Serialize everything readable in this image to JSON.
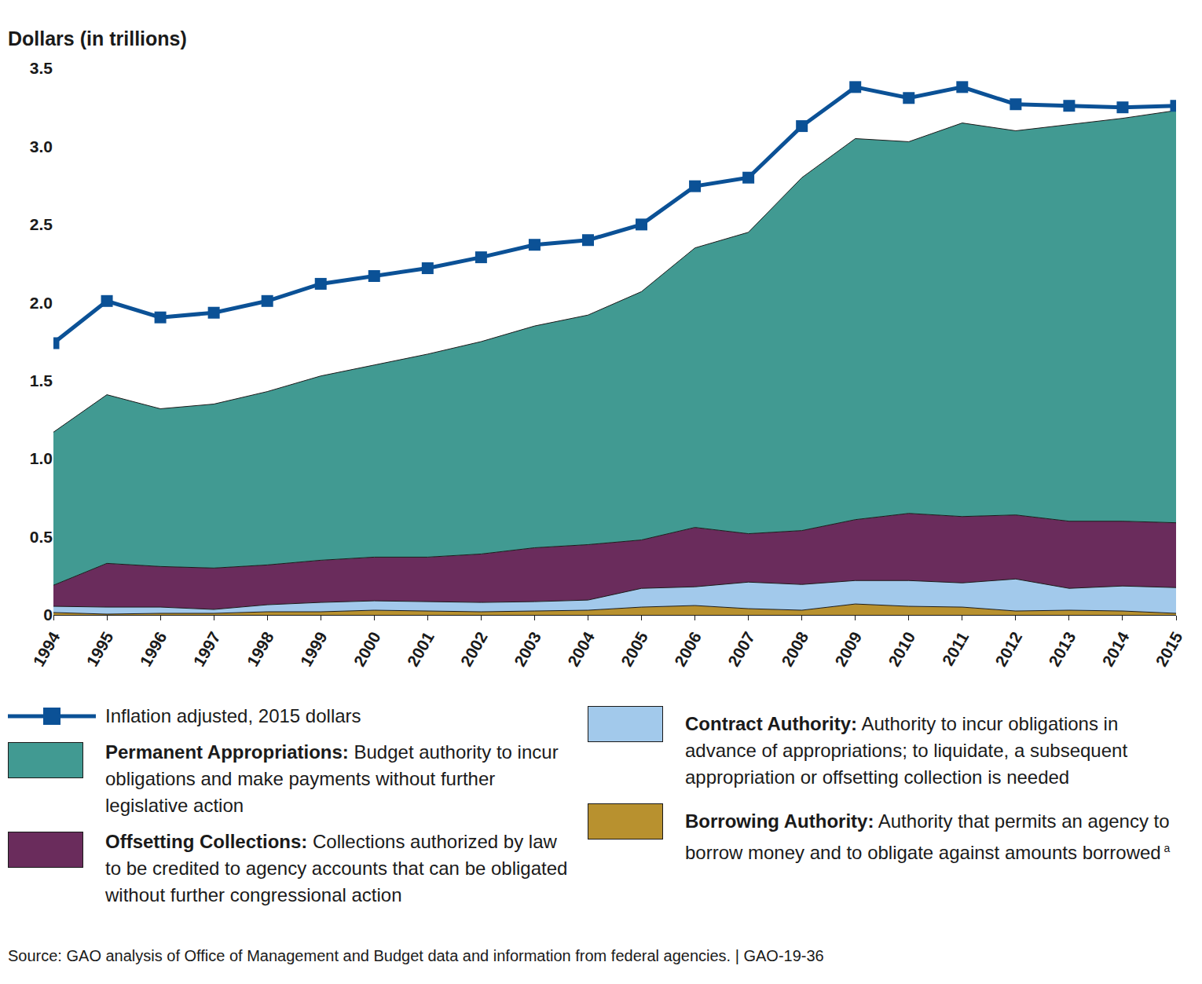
{
  "chart_data": {
    "type": "area",
    "stacked": true,
    "grid": false,
    "ylabel": "Dollars (in trillions)",
    "x": [
      1994,
      1995,
      1996,
      1997,
      1998,
      1999,
      2000,
      2001,
      2002,
      2003,
      2004,
      2005,
      2006,
      2007,
      2008,
      2009,
      2010,
      2011,
      2012,
      2013,
      2014,
      2015
    ],
    "xlim": [
      1994,
      2015
    ],
    "xticks": [
      1994,
      1995,
      1996,
      1997,
      1998,
      1999,
      2000,
      2001,
      2002,
      2003,
      2004,
      2005,
      2006,
      2007,
      2008,
      2009,
      2010,
      2011,
      2012,
      2013,
      2014,
      2015
    ],
    "ylim": [
      0,
      3.5
    ],
    "yticks": [
      0,
      0.5,
      {
        "value": 1,
        "label": "1.0"
      },
      1.5,
      {
        "value": 2,
        "label": "2.0"
      },
      2.5,
      {
        "value": 3,
        "label": "3.0"
      },
      3.5
    ],
    "series": [
      {
        "name": "Borrowing Authority:",
        "type": "area",
        "color": "#b8912f",
        "description": "Authority that permits an agency to borrow money and to obligate against amounts borrowed",
        "footnote": "a",
        "values": [
          0.015,
          0.005,
          0.01,
          0.01,
          0.02,
          0.02,
          0.03,
          0.025,
          0.02,
          0.025,
          0.03,
          0.05,
          0.06,
          0.04,
          0.03,
          0.07,
          0.055,
          0.05,
          0.025,
          0.03,
          0.025,
          0.01
        ]
      },
      {
        "name": "Contract Authority:",
        "type": "area",
        "color": "#a2c9eb",
        "description": "Authority to incur obligations in advance of appropriations; to liquidate, a subsequent appropriation or offsetting collection is needed",
        "values": [
          0.04,
          0.045,
          0.04,
          0.025,
          0.045,
          0.06,
          0.06,
          0.06,
          0.06,
          0.06,
          0.065,
          0.12,
          0.12,
          0.17,
          0.165,
          0.15,
          0.165,
          0.155,
          0.205,
          0.14,
          0.16,
          0.165
        ]
      },
      {
        "name": "Offsetting Collections:",
        "type": "area",
        "color": "#6a2c5c",
        "description": "Collections authorized by law to be credited to agency accounts that can be obligated without further congressional action",
        "values": [
          0.135,
          0.28,
          0.26,
          0.265,
          0.255,
          0.27,
          0.28,
          0.285,
          0.31,
          0.345,
          0.355,
          0.31,
          0.38,
          0.31,
          0.345,
          0.39,
          0.43,
          0.425,
          0.41,
          0.43,
          0.415,
          0.415
        ]
      },
      {
        "name": "Permanent Appropriations:",
        "type": "area",
        "color": "#419a92",
        "description": "Budget authority to incur obligations and make payments without further legislative action",
        "values": [
          0.98,
          1.08,
          1.01,
          1.05,
          1.11,
          1.18,
          1.23,
          1.3,
          1.36,
          1.42,
          1.47,
          1.59,
          1.79,
          1.93,
          2.26,
          2.44,
          2.38,
          2.52,
          2.46,
          2.54,
          2.58,
          2.64
        ]
      },
      {
        "name": "Inflation adjusted, 2015 dollars",
        "type": "line",
        "color": "#0b5196",
        "marker": "square",
        "line_style": "solid",
        "values": [
          1.74,
          2.01,
          1.905,
          1.935,
          2.01,
          2.12,
          2.17,
          2.22,
          2.29,
          2.37,
          2.4,
          2.5,
          2.745,
          2.8,
          3.13,
          3.38,
          3.31,
          3.38,
          3.27,
          3.26,
          3.25,
          3.26
        ]
      }
    ],
    "source": "Source: GAO analysis of Office of Management and Budget data and information from federal agencies.  |  GAO-19-36"
  }
}
